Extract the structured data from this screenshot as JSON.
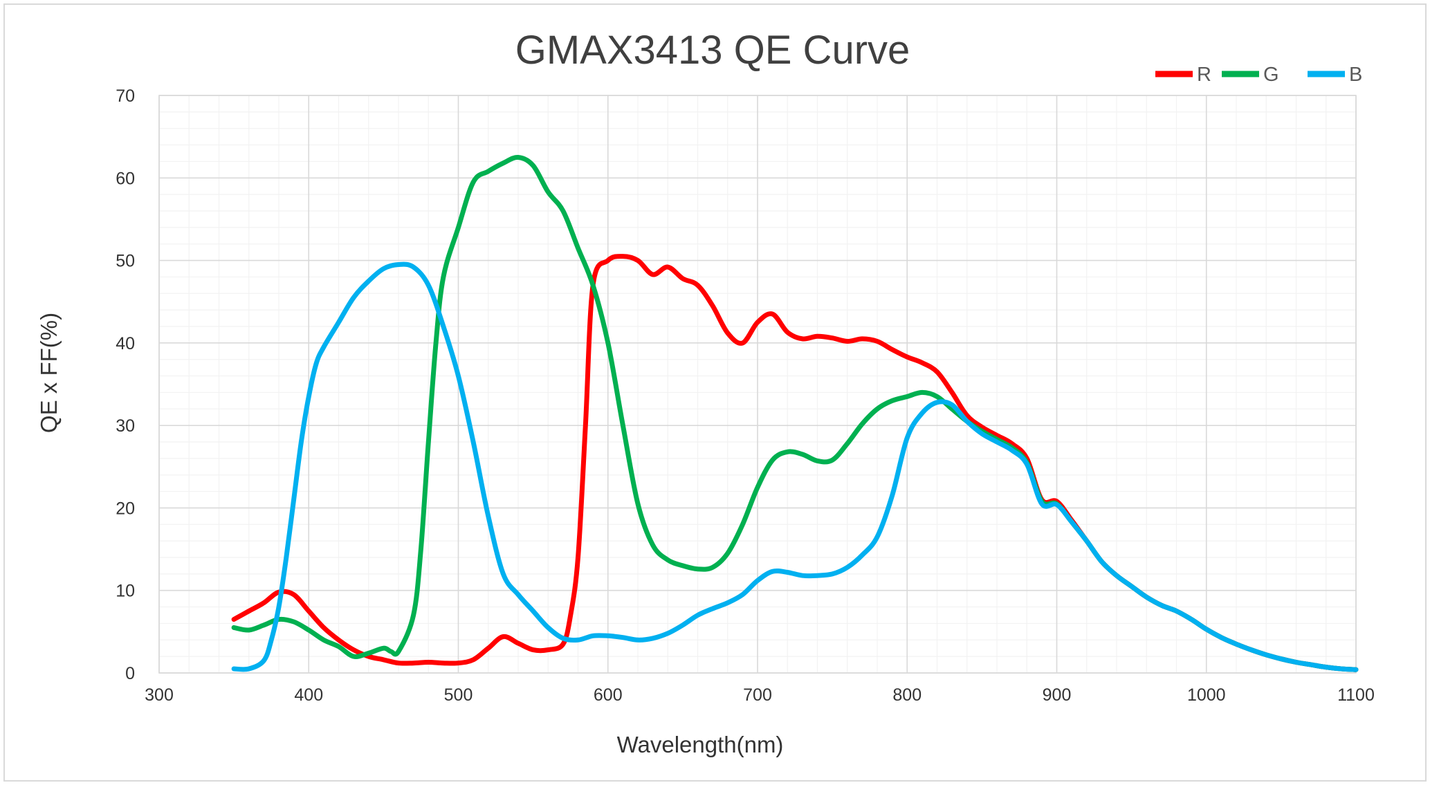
{
  "chart_data": {
    "type": "line",
    "title": "GMAX3413 QE  Curve",
    "xlabel": "Wavelength(nm)",
    "ylabel": "QE x FF(%)",
    "xlim": [
      300,
      1100
    ],
    "ylim": [
      0,
      70
    ],
    "x_ticks": [
      300,
      400,
      500,
      600,
      700,
      800,
      900,
      1000,
      1100
    ],
    "y_ticks": [
      0,
      10,
      20,
      30,
      40,
      50,
      60,
      70
    ],
    "grid": true,
    "minor_grid": true,
    "legend_position": "top-right",
    "series": [
      {
        "name": "R",
        "color": "#ff0000",
        "points": [
          [
            350,
            6.5
          ],
          [
            360,
            7.5
          ],
          [
            370,
            8.5
          ],
          [
            380,
            9.8
          ],
          [
            390,
            9.5
          ],
          [
            400,
            7.5
          ],
          [
            410,
            5.5
          ],
          [
            420,
            4.0
          ],
          [
            430,
            2.8
          ],
          [
            440,
            2.0
          ],
          [
            450,
            1.6
          ],
          [
            460,
            1.2
          ],
          [
            470,
            1.2
          ],
          [
            480,
            1.3
          ],
          [
            490,
            1.2
          ],
          [
            500,
            1.2
          ],
          [
            510,
            1.6
          ],
          [
            520,
            3.0
          ],
          [
            530,
            4.4
          ],
          [
            540,
            3.6
          ],
          [
            550,
            2.8
          ],
          [
            560,
            2.8
          ],
          [
            570,
            3.5
          ],
          [
            575,
            7.0
          ],
          [
            580,
            14.0
          ],
          [
            585,
            30.0
          ],
          [
            590,
            47.0
          ],
          [
            600,
            50.0
          ],
          [
            610,
            50.5
          ],
          [
            620,
            50.0
          ],
          [
            630,
            48.3
          ],
          [
            640,
            49.2
          ],
          [
            650,
            47.8
          ],
          [
            660,
            47.0
          ],
          [
            670,
            44.5
          ],
          [
            680,
            41.2
          ],
          [
            690,
            40.0
          ],
          [
            700,
            42.5
          ],
          [
            710,
            43.5
          ],
          [
            720,
            41.3
          ],
          [
            730,
            40.5
          ],
          [
            740,
            40.8
          ],
          [
            750,
            40.6
          ],
          [
            760,
            40.2
          ],
          [
            770,
            40.5
          ],
          [
            780,
            40.2
          ],
          [
            790,
            39.2
          ],
          [
            800,
            38.3
          ],
          [
            810,
            37.6
          ],
          [
            820,
            36.5
          ],
          [
            830,
            34.0
          ],
          [
            840,
            31.2
          ],
          [
            850,
            29.8
          ],
          [
            860,
            28.8
          ],
          [
            870,
            27.8
          ],
          [
            880,
            26.0
          ],
          [
            890,
            21.0
          ],
          [
            900,
            20.8
          ],
          [
            910,
            18.5
          ],
          [
            920,
            16.0
          ],
          [
            930,
            13.5
          ],
          [
            940,
            11.8
          ],
          [
            950,
            10.5
          ],
          [
            960,
            9.2
          ],
          [
            970,
            8.2
          ],
          [
            980,
            7.5
          ],
          [
            990,
            6.5
          ],
          [
            1000,
            5.3
          ],
          [
            1010,
            4.3
          ],
          [
            1020,
            3.5
          ],
          [
            1030,
            2.8
          ],
          [
            1040,
            2.2
          ],
          [
            1050,
            1.7
          ],
          [
            1060,
            1.3
          ],
          [
            1070,
            1.0
          ],
          [
            1080,
            0.7
          ],
          [
            1090,
            0.5
          ],
          [
            1100,
            0.4
          ]
        ]
      },
      {
        "name": "G",
        "color": "#00b050",
        "points": [
          [
            350,
            5.5
          ],
          [
            360,
            5.2
          ],
          [
            370,
            5.8
          ],
          [
            380,
            6.5
          ],
          [
            390,
            6.2
          ],
          [
            400,
            5.2
          ],
          [
            410,
            4.0
          ],
          [
            420,
            3.2
          ],
          [
            430,
            2.0
          ],
          [
            440,
            2.4
          ],
          [
            450,
            3.0
          ],
          [
            455,
            2.6
          ],
          [
            460,
            2.6
          ],
          [
            470,
            7.0
          ],
          [
            475,
            15.0
          ],
          [
            480,
            28.0
          ],
          [
            485,
            40.0
          ],
          [
            490,
            48.0
          ],
          [
            500,
            54.0
          ],
          [
            510,
            59.5
          ],
          [
            520,
            60.8
          ],
          [
            530,
            61.8
          ],
          [
            540,
            62.5
          ],
          [
            550,
            61.5
          ],
          [
            560,
            58.3
          ],
          [
            570,
            56.0
          ],
          [
            580,
            51.5
          ],
          [
            590,
            47.0
          ],
          [
            600,
            40.0
          ],
          [
            610,
            30.0
          ],
          [
            620,
            20.5
          ],
          [
            630,
            15.5
          ],
          [
            640,
            13.7
          ],
          [
            650,
            13.0
          ],
          [
            660,
            12.6
          ],
          [
            670,
            12.8
          ],
          [
            680,
            14.5
          ],
          [
            690,
            18.0
          ],
          [
            700,
            22.5
          ],
          [
            710,
            25.8
          ],
          [
            720,
            26.8
          ],
          [
            730,
            26.5
          ],
          [
            740,
            25.7
          ],
          [
            750,
            25.8
          ],
          [
            760,
            27.8
          ],
          [
            770,
            30.2
          ],
          [
            780,
            32.0
          ],
          [
            790,
            33.0
          ],
          [
            800,
            33.5
          ],
          [
            810,
            34.0
          ],
          [
            820,
            33.5
          ],
          [
            830,
            32.0
          ],
          [
            840,
            30.5
          ],
          [
            850,
            29.3
          ],
          [
            860,
            28.3
          ],
          [
            870,
            27.3
          ],
          [
            880,
            25.5
          ],
          [
            890,
            20.8
          ],
          [
            900,
            20.5
          ],
          [
            910,
            18.3
          ],
          [
            920,
            16.0
          ],
          [
            930,
            13.5
          ],
          [
            940,
            11.8
          ],
          [
            950,
            10.5
          ],
          [
            960,
            9.2
          ],
          [
            970,
            8.2
          ],
          [
            980,
            7.5
          ],
          [
            990,
            6.5
          ],
          [
            1000,
            5.3
          ],
          [
            1010,
            4.3
          ],
          [
            1020,
            3.5
          ],
          [
            1030,
            2.8
          ],
          [
            1040,
            2.2
          ],
          [
            1050,
            1.7
          ],
          [
            1060,
            1.3
          ],
          [
            1070,
            1.0
          ],
          [
            1080,
            0.7
          ],
          [
            1090,
            0.5
          ],
          [
            1100,
            0.4
          ]
        ]
      },
      {
        "name": "B",
        "color": "#00b0f0",
        "points": [
          [
            350,
            0.5
          ],
          [
            360,
            0.5
          ],
          [
            370,
            1.5
          ],
          [
            375,
            4.0
          ],
          [
            380,
            8.0
          ],
          [
            385,
            14.0
          ],
          [
            390,
            21.0
          ],
          [
            395,
            28.0
          ],
          [
            400,
            33.5
          ],
          [
            405,
            37.5
          ],
          [
            410,
            39.5
          ],
          [
            420,
            42.5
          ],
          [
            430,
            45.5
          ],
          [
            440,
            47.5
          ],
          [
            450,
            49.0
          ],
          [
            460,
            49.5
          ],
          [
            470,
            49.2
          ],
          [
            480,
            47.0
          ],
          [
            490,
            42.0
          ],
          [
            500,
            36.0
          ],
          [
            510,
            28.0
          ],
          [
            520,
            19.0
          ],
          [
            530,
            12.0
          ],
          [
            540,
            9.5
          ],
          [
            550,
            7.5
          ],
          [
            560,
            5.5
          ],
          [
            570,
            4.2
          ],
          [
            580,
            4.0
          ],
          [
            590,
            4.5
          ],
          [
            600,
            4.5
          ],
          [
            610,
            4.3
          ],
          [
            620,
            4.0
          ],
          [
            630,
            4.2
          ],
          [
            640,
            4.8
          ],
          [
            650,
            5.8
          ],
          [
            660,
            7.0
          ],
          [
            670,
            7.8
          ],
          [
            680,
            8.5
          ],
          [
            690,
            9.5
          ],
          [
            700,
            11.2
          ],
          [
            710,
            12.3
          ],
          [
            720,
            12.2
          ],
          [
            730,
            11.8
          ],
          [
            740,
            11.8
          ],
          [
            750,
            12.0
          ],
          [
            760,
            12.8
          ],
          [
            770,
            14.3
          ],
          [
            780,
            16.5
          ],
          [
            790,
            21.5
          ],
          [
            800,
            28.5
          ],
          [
            810,
            31.5
          ],
          [
            820,
            32.8
          ],
          [
            830,
            32.5
          ],
          [
            840,
            30.5
          ],
          [
            850,
            29.0
          ],
          [
            860,
            28.0
          ],
          [
            870,
            27.0
          ],
          [
            880,
            25.3
          ],
          [
            890,
            20.5
          ],
          [
            900,
            20.4
          ],
          [
            910,
            18.3
          ],
          [
            920,
            16.0
          ],
          [
            930,
            13.5
          ],
          [
            940,
            11.8
          ],
          [
            950,
            10.5
          ],
          [
            960,
            9.2
          ],
          [
            970,
            8.2
          ],
          [
            980,
            7.5
          ],
          [
            990,
            6.5
          ],
          [
            1000,
            5.3
          ],
          [
            1010,
            4.3
          ],
          [
            1020,
            3.5
          ],
          [
            1030,
            2.8
          ],
          [
            1040,
            2.2
          ],
          [
            1050,
            1.7
          ],
          [
            1060,
            1.3
          ],
          [
            1070,
            1.0
          ],
          [
            1080,
            0.7
          ],
          [
            1090,
            0.5
          ],
          [
            1100,
            0.4
          ]
        ]
      }
    ]
  }
}
